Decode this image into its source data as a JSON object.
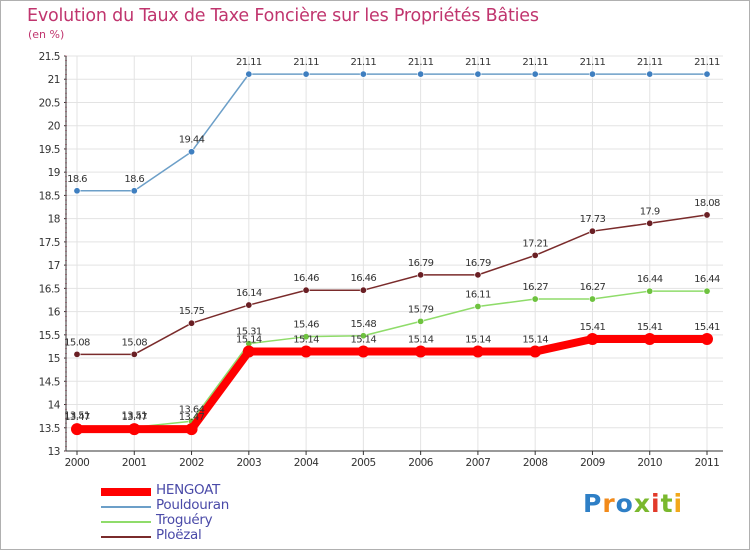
{
  "chart_data": {
    "type": "line",
    "title": "Evolution du Taux de Taxe Foncière sur les Propriétés Bâties",
    "ylabel": "(en %)",
    "xlabel": "",
    "ylim": [
      13,
      21.5
    ],
    "yticks": [
      "13",
      "13.5",
      "14",
      "14.5",
      "15",
      "15.5",
      "16",
      "16.5",
      "17",
      "17.5",
      "18",
      "18.5",
      "19",
      "19.5",
      "20",
      "20.5",
      "21",
      "21.5"
    ],
    "x": [
      "2000",
      "2001",
      "2002",
      "2003",
      "2004",
      "2005",
      "2006",
      "2007",
      "2008",
      "2009",
      "2010",
      "2011"
    ],
    "series": [
      {
        "name": "Pouldouran",
        "color": "#6c9fc8",
        "point": "#3f7fc0",
        "values": [
          18.6,
          18.6,
          19.44,
          21.11,
          21.11,
          21.11,
          21.11,
          21.11,
          21.11,
          21.11,
          21.11,
          21.11
        ],
        "labels": [
          "18.6",
          "18.6",
          "19.44",
          "21.11",
          "21.11",
          "21.11",
          "21.11",
          "21.11",
          "21.11",
          "21.11",
          "21.11",
          "21.11"
        ]
      },
      {
        "name": "Ploëzal",
        "color": "#7a2b2b",
        "point": "#6a1f24",
        "values": [
          15.08,
          15.08,
          15.75,
          16.14,
          16.46,
          16.46,
          16.79,
          16.79,
          17.21,
          17.73,
          17.9,
          18.08
        ],
        "labels": [
          "15.08",
          "15.08",
          "15.75",
          "16.14",
          "16.46",
          "16.46",
          "16.79",
          "16.79",
          "17.21",
          "17.73",
          "17.9",
          "18.08"
        ]
      },
      {
        "name": "Troguéry",
        "color": "#8fdc6a",
        "point": "#6ec23f",
        "values": [
          13.51,
          13.51,
          13.64,
          15.31,
          15.46,
          15.48,
          15.79,
          16.11,
          16.27,
          16.27,
          16.44,
          16.44
        ],
        "labels": [
          "13.51",
          "13.51",
          "13.64",
          "15.31",
          "15.46",
          "15.48",
          "15.79",
          "16.11",
          "16.27",
          "16.27",
          "16.44",
          "16.44"
        ]
      },
      {
        "name": "HENGOAT",
        "color": "#ff0000",
        "point": "#ff0000",
        "thick": true,
        "values": [
          13.47,
          13.47,
          13.47,
          15.14,
          15.14,
          15.14,
          15.14,
          15.14,
          15.14,
          15.41,
          15.41,
          15.41
        ],
        "labels": [
          "13.47",
          "13.47",
          "13.47",
          "15.14",
          "15.14",
          "15.14",
          "15.14",
          "15.14",
          "15.14",
          "15.41",
          "15.41",
          "15.41"
        ]
      }
    ],
    "legend_order": [
      "HENGOAT",
      "Pouldouran",
      "Troguéry",
      "Ploëzal"
    ]
  },
  "brand": {
    "name": "Proxiti",
    "letters": [
      "P",
      "r",
      "o",
      "x",
      "i",
      "t",
      "i"
    ],
    "colors": [
      "#2e7fc6",
      "#f28a1a",
      "#2e7fc6",
      "#7ab82e",
      "#e23a2a",
      "#7ab82e",
      "#f2a81a"
    ]
  }
}
